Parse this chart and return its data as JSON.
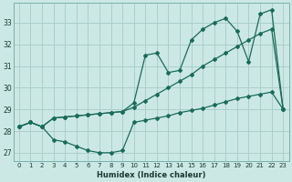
{
  "xlabel": "Humidex (Indice chaleur)",
  "background_color": "#cce8e4",
  "grid_color": "#aacfca",
  "line_color": "#1a6b5a",
  "xlim": [
    -0.5,
    23.5
  ],
  "ylim": [
    26.6,
    33.9
  ],
  "yticks": [
    27,
    28,
    29,
    30,
    31,
    32,
    33
  ],
  "xticks": [
    0,
    1,
    2,
    3,
    4,
    5,
    6,
    7,
    8,
    9,
    10,
    11,
    12,
    13,
    14,
    15,
    16,
    17,
    18,
    19,
    20,
    21,
    22,
    23
  ],
  "line1_x": [
    0,
    1,
    2,
    3,
    4,
    5,
    6,
    7,
    8,
    9,
    10,
    11,
    12,
    13,
    14,
    15,
    16,
    17,
    18,
    19,
    20,
    21,
    22,
    23
  ],
  "line1_y": [
    28.2,
    28.4,
    28.2,
    27.6,
    27.5,
    27.3,
    27.1,
    27.0,
    27.0,
    27.1,
    28.4,
    28.5,
    28.6,
    28.7,
    28.85,
    28.95,
    29.05,
    29.2,
    29.35,
    29.5,
    29.6,
    29.7,
    29.8,
    29.0
  ],
  "line2_x": [
    0,
    1,
    2,
    3,
    4,
    5,
    6,
    7,
    8,
    9,
    10,
    11,
    12,
    13,
    14,
    15,
    16,
    17,
    18,
    19,
    20,
    21,
    22,
    23
  ],
  "line2_y": [
    28.2,
    28.4,
    28.2,
    28.6,
    28.65,
    28.7,
    28.75,
    28.8,
    28.85,
    28.9,
    29.1,
    29.4,
    29.7,
    30.0,
    30.3,
    30.6,
    31.0,
    31.3,
    31.6,
    31.9,
    32.2,
    32.5,
    32.7,
    29.0
  ],
  "line3_x": [
    0,
    1,
    2,
    3,
    4,
    5,
    6,
    7,
    8,
    9,
    10,
    11,
    12,
    13,
    14,
    15,
    16,
    17,
    18,
    19,
    20,
    21,
    22,
    23
  ],
  "line3_y": [
    28.2,
    28.4,
    28.2,
    28.6,
    28.65,
    28.7,
    28.75,
    28.8,
    28.85,
    28.9,
    29.3,
    31.5,
    31.6,
    30.7,
    30.8,
    32.2,
    32.7,
    33.0,
    33.2,
    32.6,
    31.2,
    33.4,
    33.6,
    29.0
  ]
}
